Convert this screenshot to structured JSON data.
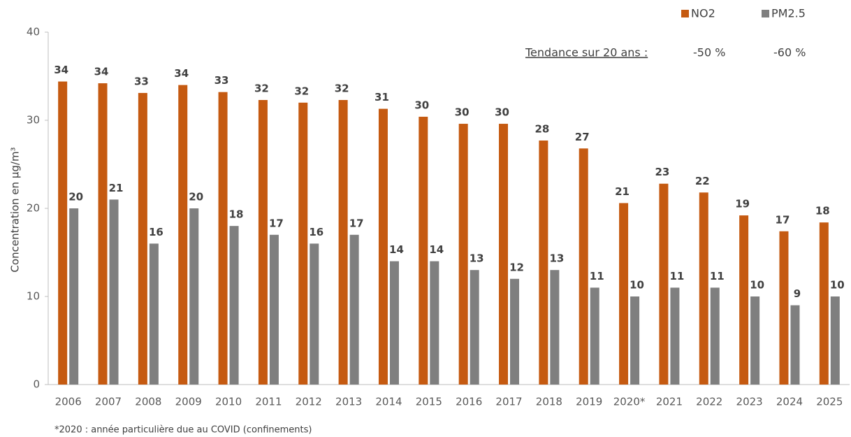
{
  "chart_data": {
    "type": "bar",
    "y_label": "Concentration en µg/m³",
    "categories": [
      "2006",
      "2007",
      "2008",
      "2009",
      "2010",
      "2011",
      "2012",
      "2013",
      "2014",
      "2015",
      "2016",
      "2017",
      "2018",
      "2019",
      "2020*",
      "2021",
      "2022",
      "2023",
      "2024",
      "2025"
    ],
    "series": [
      {
        "name": "NO2",
        "color": "#c55a11",
        "label_color": "#c00000",
        "values": [
          34.4,
          34.2,
          33.1,
          34.0,
          33.2,
          32.3,
          32.0,
          32.3,
          31.3,
          30.4,
          29.6,
          29.6,
          27.7,
          26.8,
          20.6,
          22.8,
          21.8,
          19.2,
          17.4,
          18.4
        ],
        "value_labels": [
          "34",
          "34",
          "33",
          "34",
          "33",
          "32",
          "32",
          "32",
          "31",
          "30",
          "30",
          "30",
          "28",
          "27",
          "21",
          "23",
          "22",
          "19",
          "17",
          "18"
        ]
      },
      {
        "name": "PM2.5",
        "color": "#7f7f7f",
        "label_color": "#7f7f7f",
        "values": [
          20,
          21,
          16,
          20,
          18,
          17,
          16,
          17,
          14,
          14,
          13,
          12,
          13,
          11,
          10,
          11,
          11,
          10,
          9,
          10
        ]
      }
    ],
    "ylim": [
      0,
      40
    ],
    "yticks": [
      0,
      10,
      20,
      30,
      40
    ],
    "grid": false,
    "legend_position": "top-right",
    "trend": {
      "label": "Tendance sur 20 ans :",
      "values": [
        "-50 %",
        "-60 %"
      ]
    },
    "footnote": "*2020 : année particulière due au COVID (confinements)"
  }
}
